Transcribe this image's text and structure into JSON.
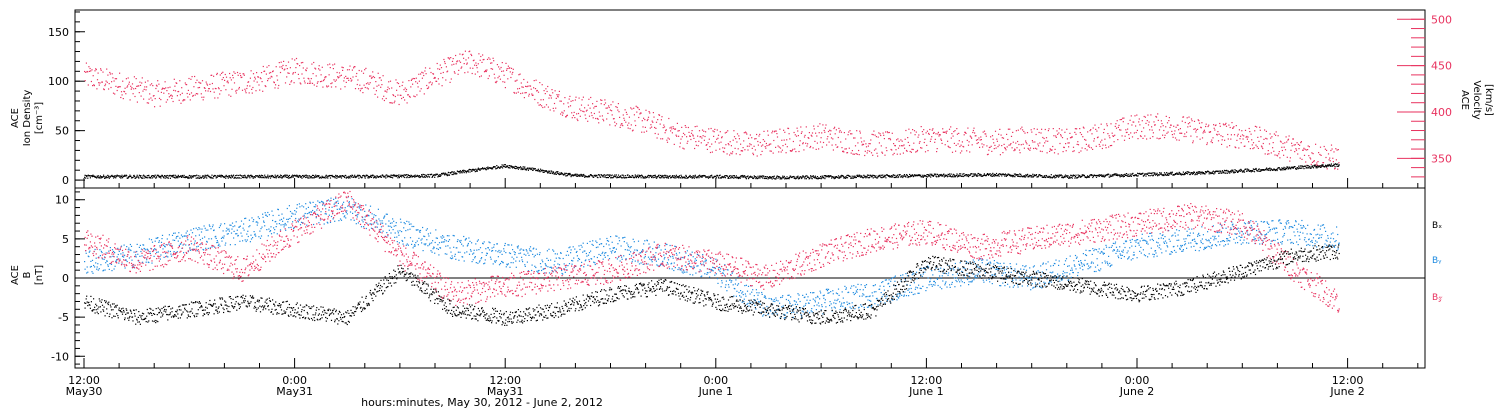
{
  "chart_data": [
    {
      "type": "scatter",
      "panel": "top",
      "ylabel_left": [
        "ACE",
        "Ion Density",
        "[cm⁻³]"
      ],
      "ylabel_right": [
        "ACE",
        "Velocity",
        "[km/s]"
      ],
      "ylim_left": [
        -8,
        172
      ],
      "ylim_right": [
        318,
        510
      ],
      "yticks_left": [
        "0",
        "50",
        "100",
        "150"
      ],
      "yticks_right": [
        "350",
        "400",
        "450",
        "500"
      ],
      "series": [
        {
          "color": "#e8325f",
          "axis": "right",
          "x": [
            0,
            2,
            4,
            6,
            8,
            10,
            12,
            14,
            16,
            18,
            20,
            22,
            24,
            26,
            28,
            30,
            32,
            34,
            36,
            38,
            40,
            42,
            44,
            46,
            48,
            50,
            52,
            54,
            56,
            58,
            60,
            62,
            64,
            66,
            68,
            70,
            71.5
          ],
          "y": [
            440,
            430,
            420,
            425,
            430,
            435,
            445,
            440,
            435,
            420,
            440,
            455,
            440,
            420,
            405,
            400,
            390,
            375,
            370,
            365,
            370,
            375,
            368,
            365,
            372,
            370,
            368,
            372,
            368,
            375,
            385,
            385,
            378,
            375,
            365,
            355,
            350
          ]
        },
        {
          "color": "#000000",
          "axis": "left",
          "x": [
            0,
            4,
            8,
            12,
            16,
            20,
            24,
            28,
            32,
            36,
            40,
            44,
            48,
            52,
            56,
            60,
            64,
            68,
            71.5
          ],
          "y": [
            4,
            4,
            4,
            4,
            4,
            5,
            15,
            5,
            4,
            4,
            3,
            4,
            5,
            6,
            4,
            6,
            8,
            12,
            16
          ]
        }
      ]
    },
    {
      "type": "scatter",
      "panel": "bottom",
      "ylabel": [
        "ACE",
        "B",
        "[nT]"
      ],
      "ylim": [
        -11.5,
        11.5
      ],
      "yticks": [
        "-10",
        "-5",
        "0",
        "5",
        "10"
      ],
      "legend": [
        "Bₓ",
        "Bᵧ",
        "B𝓏"
      ],
      "series": [
        {
          "name": "Bₓ",
          "color": "#000000",
          "x": [
            0,
            3,
            6,
            9,
            12,
            15,
            18,
            21,
            24,
            27,
            30,
            33,
            36,
            39,
            42,
            45,
            48,
            51,
            54,
            57,
            60,
            63,
            66,
            69,
            71.5
          ],
          "y": [
            -3,
            -5,
            -4,
            -3,
            -4,
            -5,
            1,
            -4,
            -5,
            -4,
            -2,
            -1,
            -3,
            -4,
            -5,
            -4,
            2,
            1,
            0,
            -1,
            -2,
            -1,
            1,
            3,
            3.5
          ]
        },
        {
          "name": "Bᵧ",
          "color": "#1f8be0",
          "x": [
            0,
            3,
            6,
            9,
            12,
            15,
            18,
            21,
            24,
            27,
            30,
            33,
            36,
            39,
            42,
            45,
            48,
            51,
            54,
            57,
            60,
            63,
            66,
            69,
            71.5
          ],
          "y": [
            2,
            3,
            5,
            6,
            8,
            9,
            6,
            4,
            3,
            2,
            4,
            3,
            1,
            -4,
            -3,
            -2,
            0,
            1,
            0,
            2,
            4,
            5,
            6,
            6,
            5
          ]
        },
        {
          "name": "B𝓏",
          "color": "#e8325f",
          "x": [
            0,
            3,
            6,
            9,
            12,
            15,
            18,
            21,
            24,
            27,
            30,
            33,
            36,
            39,
            42,
            45,
            48,
            51,
            54,
            57,
            60,
            63,
            66,
            69,
            71.5
          ],
          "y": [
            5,
            2,
            4,
            1,
            6,
            10,
            3,
            -2,
            -1,
            0,
            1,
            3,
            2,
            0,
            3,
            5,
            6,
            4,
            5,
            6,
            7,
            8,
            7,
            1,
            -3
          ]
        }
      ]
    }
  ],
  "xaxis": {
    "tick_labels": [
      {
        "time": "12:00",
        "date": "May30"
      },
      {
        "time": "0:00",
        "date": "May31"
      },
      {
        "time": "12:00",
        "date": "May31"
      },
      {
        "time": "0:00",
        "date": "June 1"
      },
      {
        "time": "12:00",
        "date": "June 1"
      },
      {
        "time": "0:00",
        "date": "June 2"
      },
      {
        "time": "12:00",
        "date": "June 2"
      }
    ],
    "title": "hours:minutes, May 30, 2012 - June  2, 2012"
  }
}
